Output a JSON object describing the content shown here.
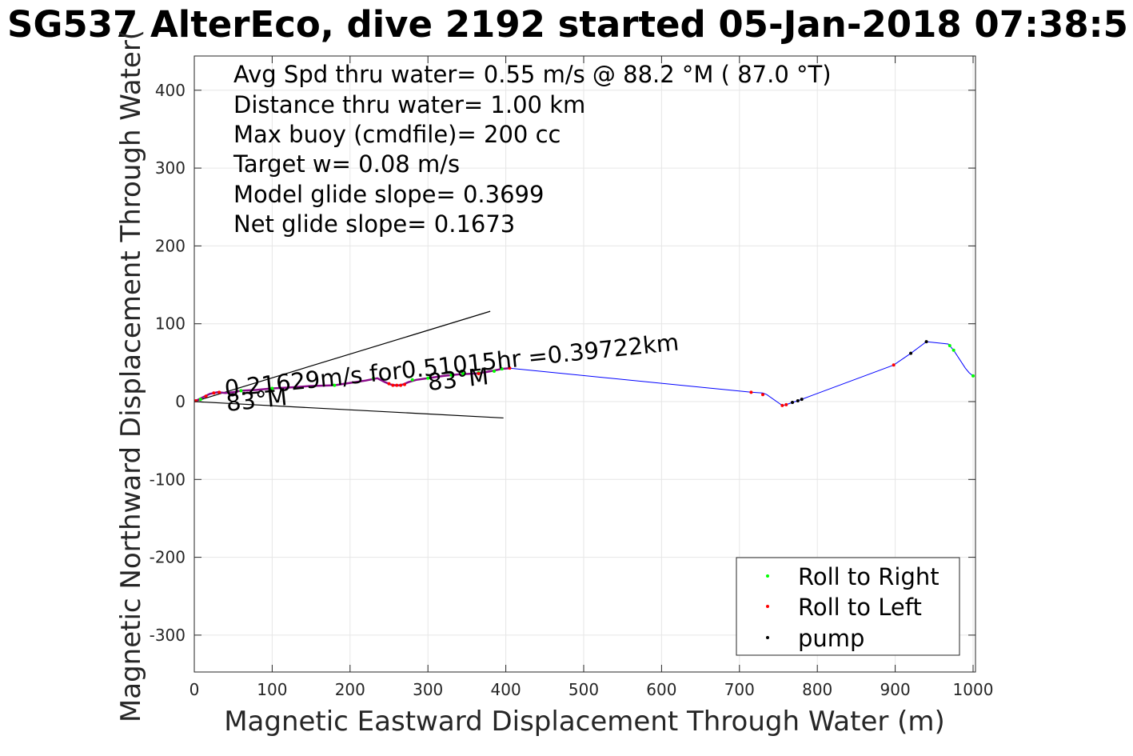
{
  "title": "SG537 AlterEco, dive 2192 started 05-Jan-2018 07:38:5",
  "info_lines": [
    "Avg Spd thru water=  0.55 m/s @  88.2 °M ( 87.0 °T)",
    "Distance thru water=  1.00 km",
    "Max buoy (cmdfile)= 200 cc",
    "Target w= 0.08 m/s",
    "Model glide slope= 0.3699",
    "Net glide slope= 0.1673"
  ],
  "annotations": {
    "speed": "0.21629m/s for0.51015hr =0.39722km",
    "heading_1": "83°M",
    "heading_2": "83°M"
  },
  "colors": {
    "track": "#0000ff",
    "roll_right": "#00ff00",
    "roll_left": "#ff0000",
    "pump": "#000000",
    "grid": "#e6e6e6",
    "axes": "#262626"
  },
  "chart_data": {
    "type": "scatter",
    "title": "SG537 AlterEco, dive 2192 started 05-Jan-2018 07:38:5",
    "xlabel": "Magnetic Eastward Displacement Through Water (m)",
    "ylabel": "Magnetic Northward Displacement Through Water(",
    "xlim": [
      0,
      1000
    ],
    "ylim": [
      -350,
      445
    ],
    "xticks": [
      0,
      100,
      200,
      300,
      400,
      500,
      600,
      700,
      800,
      900,
      1000
    ],
    "yticks": [
      -300,
      -200,
      -100,
      0,
      100,
      200,
      300,
      400
    ],
    "grid": true,
    "legend_position": "bottom-right",
    "legend": [
      "Roll to Right",
      "Roll to Left",
      "pump"
    ],
    "track": {
      "x": [
        0,
        10,
        20,
        30,
        40,
        50,
        60,
        80,
        100,
        120,
        150,
        180,
        200,
        220,
        235,
        245,
        252,
        258,
        263,
        268,
        275,
        285,
        300,
        320,
        340,
        360,
        375,
        385,
        395,
        405,
        715,
        730,
        735,
        755,
        760,
        768,
        775,
        780,
        898,
        920,
        940,
        968,
        975,
        990,
        995,
        1000
      ],
      "y": [
        0,
        5,
        10,
        12,
        11,
        12,
        14,
        15,
        17,
        18,
        20,
        21,
        24,
        27,
        30,
        25,
        22,
        21,
        21,
        22,
        25,
        28,
        30,
        33,
        35,
        36,
        38,
        40,
        42,
        43,
        12,
        11,
        9,
        -5,
        -4,
        -1,
        1,
        3,
        47,
        62,
        77,
        74,
        66,
        43,
        37,
        33
      ]
    },
    "series": [
      {
        "name": "Roll to Right",
        "color": "#00ff00",
        "x": [
          8,
          60,
          100,
          180,
          230,
          280,
          300,
          330,
          345,
          365,
          385,
          395,
          970,
          975,
          1000
        ],
        "y": [
          3,
          14,
          17,
          21,
          30,
          28,
          30,
          34,
          36,
          37,
          39,
          42,
          72,
          66,
          33
        ]
      },
      {
        "name": "Roll to Left",
        "color": "#ff0000",
        "x": [
          2,
          15,
          25,
          32,
          250,
          255,
          260,
          265,
          270,
          365,
          405,
          715,
          730,
          755,
          760,
          898
        ],
        "y": [
          1,
          7,
          11,
          12,
          23,
          21,
          21,
          21,
          22,
          36,
          43,
          12,
          9,
          -5,
          -4,
          47
        ]
      },
      {
        "name": "pump",
        "color": "#000000",
        "x": [
          768,
          775,
          780,
          920,
          940
        ],
        "y": [
          -1,
          1,
          3,
          62,
          77
        ]
      }
    ],
    "model_lines": [
      {
        "x": [
          0,
          380
        ],
        "y": [
          0,
          116
        ]
      },
      {
        "x": [
          0,
          397
        ],
        "y": [
          0,
          -21
        ]
      }
    ]
  }
}
